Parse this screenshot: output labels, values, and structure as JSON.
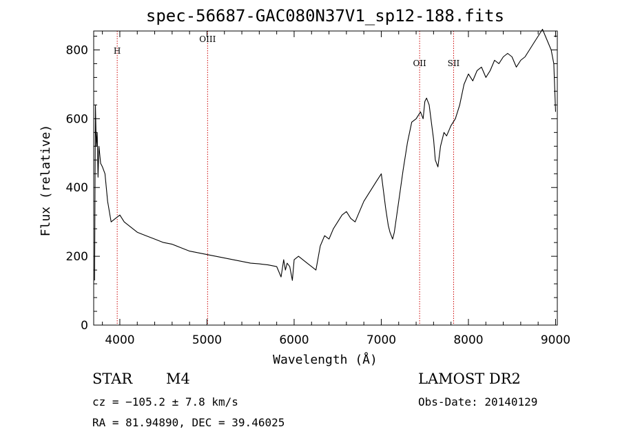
{
  "chart_data": {
    "type": "line",
    "title": "spec-56687-GAC080N37V1_sp12-188.fits",
    "xlabel": "Wavelength (Å)",
    "ylabel": "Flux (relative)",
    "xlim": [
      3700,
      9020
    ],
    "ylim": [
      0,
      855
    ],
    "x_ticks": [
      4000,
      5000,
      6000,
      7000,
      8000,
      9000
    ],
    "y_ticks": [
      0,
      200,
      400,
      600,
      800
    ],
    "grid": false,
    "spectral_lines": [
      {
        "label": "H",
        "x": 3970
      },
      {
        "label": "OIII",
        "x": 5007
      },
      {
        "label": "OII",
        "x": 7440
      },
      {
        "label": "SII",
        "x": 7830
      }
    ],
    "series": [
      {
        "x": [
          3710,
          3720,
          3730,
          3740,
          3750,
          3760,
          3780,
          3800,
          3830,
          3860,
          3900,
          3950,
          4000,
          4050,
          4100,
          4200,
          4300,
          4400,
          4500,
          4600,
          4700,
          4800,
          4900,
          5000,
          5100,
          5200,
          5300,
          5400,
          5500,
          5600,
          5700,
          5800,
          5850,
          5880,
          5900,
          5920,
          5950,
          5980,
          6000,
          6050,
          6100,
          6150,
          6200,
          6250,
          6300,
          6350,
          6400,
          6450,
          6500,
          6550,
          6600,
          6650,
          6700,
          6750,
          6800,
          6850,
          6900,
          6950,
          7000,
          7020,
          7050,
          7080,
          7100,
          7130,
          7150,
          7200,
          7250,
          7300,
          7350,
          7400,
          7450,
          7480,
          7500,
          7520,
          7550,
          7580,
          7600,
          7620,
          7650,
          7680,
          7700,
          7720,
          7750,
          7800,
          7850,
          7900,
          7950,
          8000,
          8050,
          8100,
          8150,
          8200,
          8250,
          8300,
          8350,
          8400,
          8450,
          8500,
          8550,
          8600,
          8650,
          8700,
          8750,
          8800,
          8850,
          8900,
          8950,
          8980,
          9000
        ],
        "y": [
          130,
          640,
          520,
          560,
          430,
          520,
          470,
          460,
          440,
          360,
          300,
          310,
          320,
          300,
          290,
          270,
          260,
          250,
          240,
          235,
          225,
          215,
          210,
          205,
          200,
          195,
          190,
          185,
          180,
          178,
          175,
          170,
          140,
          190,
          160,
          180,
          170,
          130,
          190,
          200,
          190,
          180,
          170,
          160,
          230,
          260,
          250,
          280,
          300,
          320,
          330,
          310,
          300,
          330,
          360,
          380,
          400,
          420,
          440,
          400,
          340,
          290,
          270,
          250,
          270,
          360,
          450,
          530,
          590,
          600,
          620,
          600,
          650,
          660,
          640,
          580,
          540,
          480,
          460,
          520,
          540,
          560,
          550,
          580,
          600,
          640,
          700,
          730,
          710,
          740,
          750,
          720,
          740,
          770,
          760,
          780,
          790,
          780,
          750,
          770,
          780,
          800,
          820,
          840,
          860,
          830,
          800,
          760,
          620
        ]
      }
    ]
  },
  "footer": {
    "object_class": "STAR",
    "subclass": "M4",
    "cz": "cz = −105.2 ± 7.8 km/s",
    "coords": "RA =  81.94890, DEC =  39.46025",
    "survey": "LAMOST DR2",
    "obs_date": "Obs-Date: 20140129"
  }
}
